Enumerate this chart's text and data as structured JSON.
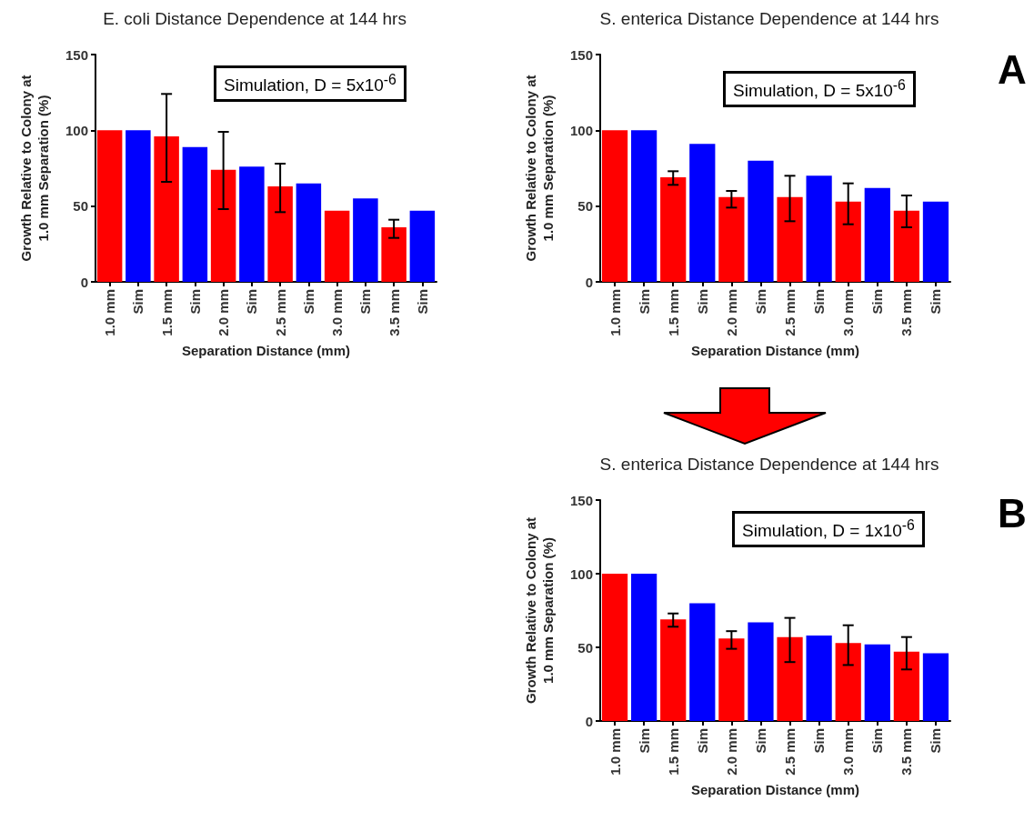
{
  "chart_data": [
    {
      "type": "bar",
      "title": "E. coli Distance Dependence at 144 hrs",
      "xlabel": "Separation Distance (mm)",
      "ylabel": "Growth Relative to Colony at\n1.0 mm Separation (%)",
      "categories": [
        "1.0 mm",
        "Sim",
        "1.5 mm",
        "Sim",
        "2.0 mm",
        "Sim",
        "2.5 mm",
        "Sim",
        "3.0 mm",
        "Sim",
        "3.5 mm",
        "Sim"
      ],
      "values": [
        100,
        100,
        96,
        89,
        74,
        76,
        63,
        65,
        47,
        55,
        36,
        47
      ],
      "colors": [
        "#ff0000",
        "#0000ff",
        "#ff0000",
        "#0000ff",
        "#ff0000",
        "#0000ff",
        "#ff0000",
        "#0000ff",
        "#ff0000",
        "#0000ff",
        "#ff0000",
        "#0000ff"
      ],
      "errors": [
        null,
        null,
        [
          66,
          124
        ],
        null,
        [
          48,
          99
        ],
        null,
        [
          46,
          78
        ],
        null,
        null,
        null,
        [
          29,
          41
        ],
        null
      ],
      "ylim": [
        0,
        150
      ],
      "yticks": [
        0,
        50,
        100,
        150
      ],
      "grid": false,
      "annotations": [
        "Simulation, D = 5x10$^{-6}$"
      ]
    },
    {
      "type": "bar",
      "title": "S. enterica Distance Dependence at 144 hrs",
      "xlabel": "Separation Distance (mm)",
      "ylabel": "Growth Relative to Colony at\n1.0 mm Separation (%)",
      "categories": [
        "1.0 mm",
        "Sim",
        "1.5 mm",
        "Sim",
        "2.0 mm",
        "Sim",
        "2.5 mm",
        "Sim",
        "3.0 mm",
        "Sim",
        "3.5 mm",
        "Sim"
      ],
      "values": [
        100,
        100,
        69,
        91,
        56,
        80,
        56,
        70,
        53,
        62,
        47,
        53
      ],
      "colors": [
        "#ff0000",
        "#0000ff",
        "#ff0000",
        "#0000ff",
        "#ff0000",
        "#0000ff",
        "#ff0000",
        "#0000ff",
        "#ff0000",
        "#0000ff",
        "#ff0000",
        "#0000ff"
      ],
      "errors": [
        null,
        null,
        [
          64,
          73
        ],
        null,
        [
          49,
          60
        ],
        null,
        [
          40,
          70
        ],
        null,
        [
          38,
          65
        ],
        null,
        [
          36,
          57
        ],
        null
      ],
      "ylim": [
        0,
        150
      ],
      "yticks": [
        0,
        50,
        100,
        150
      ],
      "grid": false,
      "annotations": [
        "Simulation, D = 5x10$^{-6}$",
        "A"
      ]
    },
    {
      "type": "bar",
      "title": "S. enterica Distance Dependence at 144 hrs",
      "xlabel": "Separation Distance (mm)",
      "ylabel": "Growth Relative to Colony at\n1.0 mm Separation (%)",
      "categories": [
        "1.0 mm",
        "Sim",
        "1.5 mm",
        "Sim",
        "2.0 mm",
        "Sim",
        "2.5 mm",
        "Sim",
        "3.0 mm",
        "Sim",
        "3.5 mm",
        "Sim"
      ],
      "values": [
        100,
        100,
        69,
        80,
        56,
        67,
        57,
        58,
        53,
        52,
        47,
        46
      ],
      "colors": [
        "#ff0000",
        "#0000ff",
        "#ff0000",
        "#0000ff",
        "#ff0000",
        "#0000ff",
        "#ff0000",
        "#0000ff",
        "#ff0000",
        "#0000ff",
        "#ff0000",
        "#0000ff"
      ],
      "errors": [
        null,
        null,
        [
          64,
          73
        ],
        null,
        [
          49,
          61
        ],
        null,
        [
          40,
          70
        ],
        null,
        [
          38,
          65
        ],
        null,
        [
          35,
          57
        ],
        null
      ],
      "ylim": [
        0,
        150
      ],
      "yticks": [
        0,
        50,
        100,
        150
      ],
      "grid": false,
      "annotations": [
        "Simulation, D = 1x10$^{-6}$",
        "B"
      ]
    }
  ]
}
